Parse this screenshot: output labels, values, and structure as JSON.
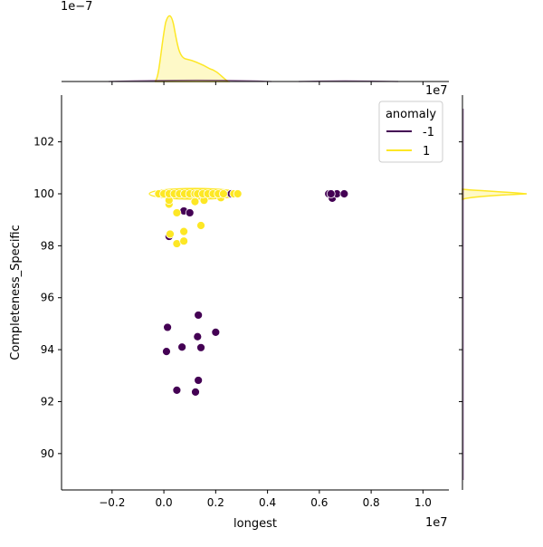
{
  "chart_data": {
    "type": "scatter",
    "subtype": "jointplot with marginal KDE",
    "xlabel": "longest",
    "ylabel": "Completeness_Specific",
    "x_offset_label": "1e7",
    "top_marginal_offset_label": "1e−7",
    "xlim": [
      -0.395,
      1.1
    ],
    "ylim": [
      88.6,
      103.8
    ],
    "x_ticks": [
      "−0.2",
      "0.0",
      "0.2",
      "0.4",
      "0.6",
      "0.8",
      "1.0"
    ],
    "x_tick_values": [
      -0.2,
      0,
      0.2,
      0.4,
      0.6,
      0.8,
      1.0
    ],
    "y_ticks": [
      "90",
      "92",
      "94",
      "96",
      "98",
      "100",
      "102"
    ],
    "y_tick_values": [
      90,
      92,
      94,
      96,
      98,
      100,
      102
    ],
    "grid": false,
    "legend": {
      "title": "anomaly",
      "placement": "top-right",
      "entries": [
        "-1",
        "1"
      ]
    },
    "colors": {
      "-1": "#440154",
      "1": "#fde725"
    },
    "series": [
      {
        "name": "-1",
        "points": [
          [
            0.014,
            94.86
          ],
          [
            0.01,
            93.93
          ],
          [
            0.07,
            94.1
          ],
          [
            0.133,
            95.33
          ],
          [
            0.13,
            94.5
          ],
          [
            0.143,
            94.08
          ],
          [
            0.2,
            94.67
          ],
          [
            0.133,
            92.82
          ],
          [
            0.05,
            92.44
          ],
          [
            0.122,
            92.37
          ],
          [
            0.02,
            98.36
          ],
          [
            0.077,
            99.34
          ],
          [
            0.1,
            99.27
          ],
          [
            0.26,
            100
          ],
          [
            0.636,
            100
          ],
          [
            0.65,
            99.83
          ],
          [
            0.668,
            100
          ],
          [
            0.696,
            100
          ],
          [
            0.645,
            100
          ]
        ]
      },
      {
        "name": "1",
        "points": [
          [
            0.024,
            98.45
          ],
          [
            0.05,
            98.08
          ],
          [
            0.077,
            98.18
          ],
          [
            0.077,
            98.55
          ],
          [
            0.143,
            98.78
          ],
          [
            0.05,
            99.27
          ],
          [
            0.02,
            99.6
          ],
          [
            0.02,
            99.75
          ],
          [
            0.12,
            99.7
          ],
          [
            0.155,
            99.75
          ],
          [
            0.22,
            99.85
          ],
          [
            -0.02,
            100
          ],
          [
            0.0,
            100
          ],
          [
            0.02,
            100
          ],
          [
            0.04,
            100
          ],
          [
            0.06,
            100
          ],
          [
            0.08,
            100
          ],
          [
            0.1,
            100
          ],
          [
            0.12,
            100
          ],
          [
            0.13,
            100
          ],
          [
            0.15,
            100
          ],
          [
            0.17,
            100
          ],
          [
            0.19,
            100
          ],
          [
            0.21,
            100
          ],
          [
            0.23,
            100
          ],
          [
            0.27,
            100
          ],
          [
            0.285,
            100
          ]
        ]
      }
    ]
  }
}
